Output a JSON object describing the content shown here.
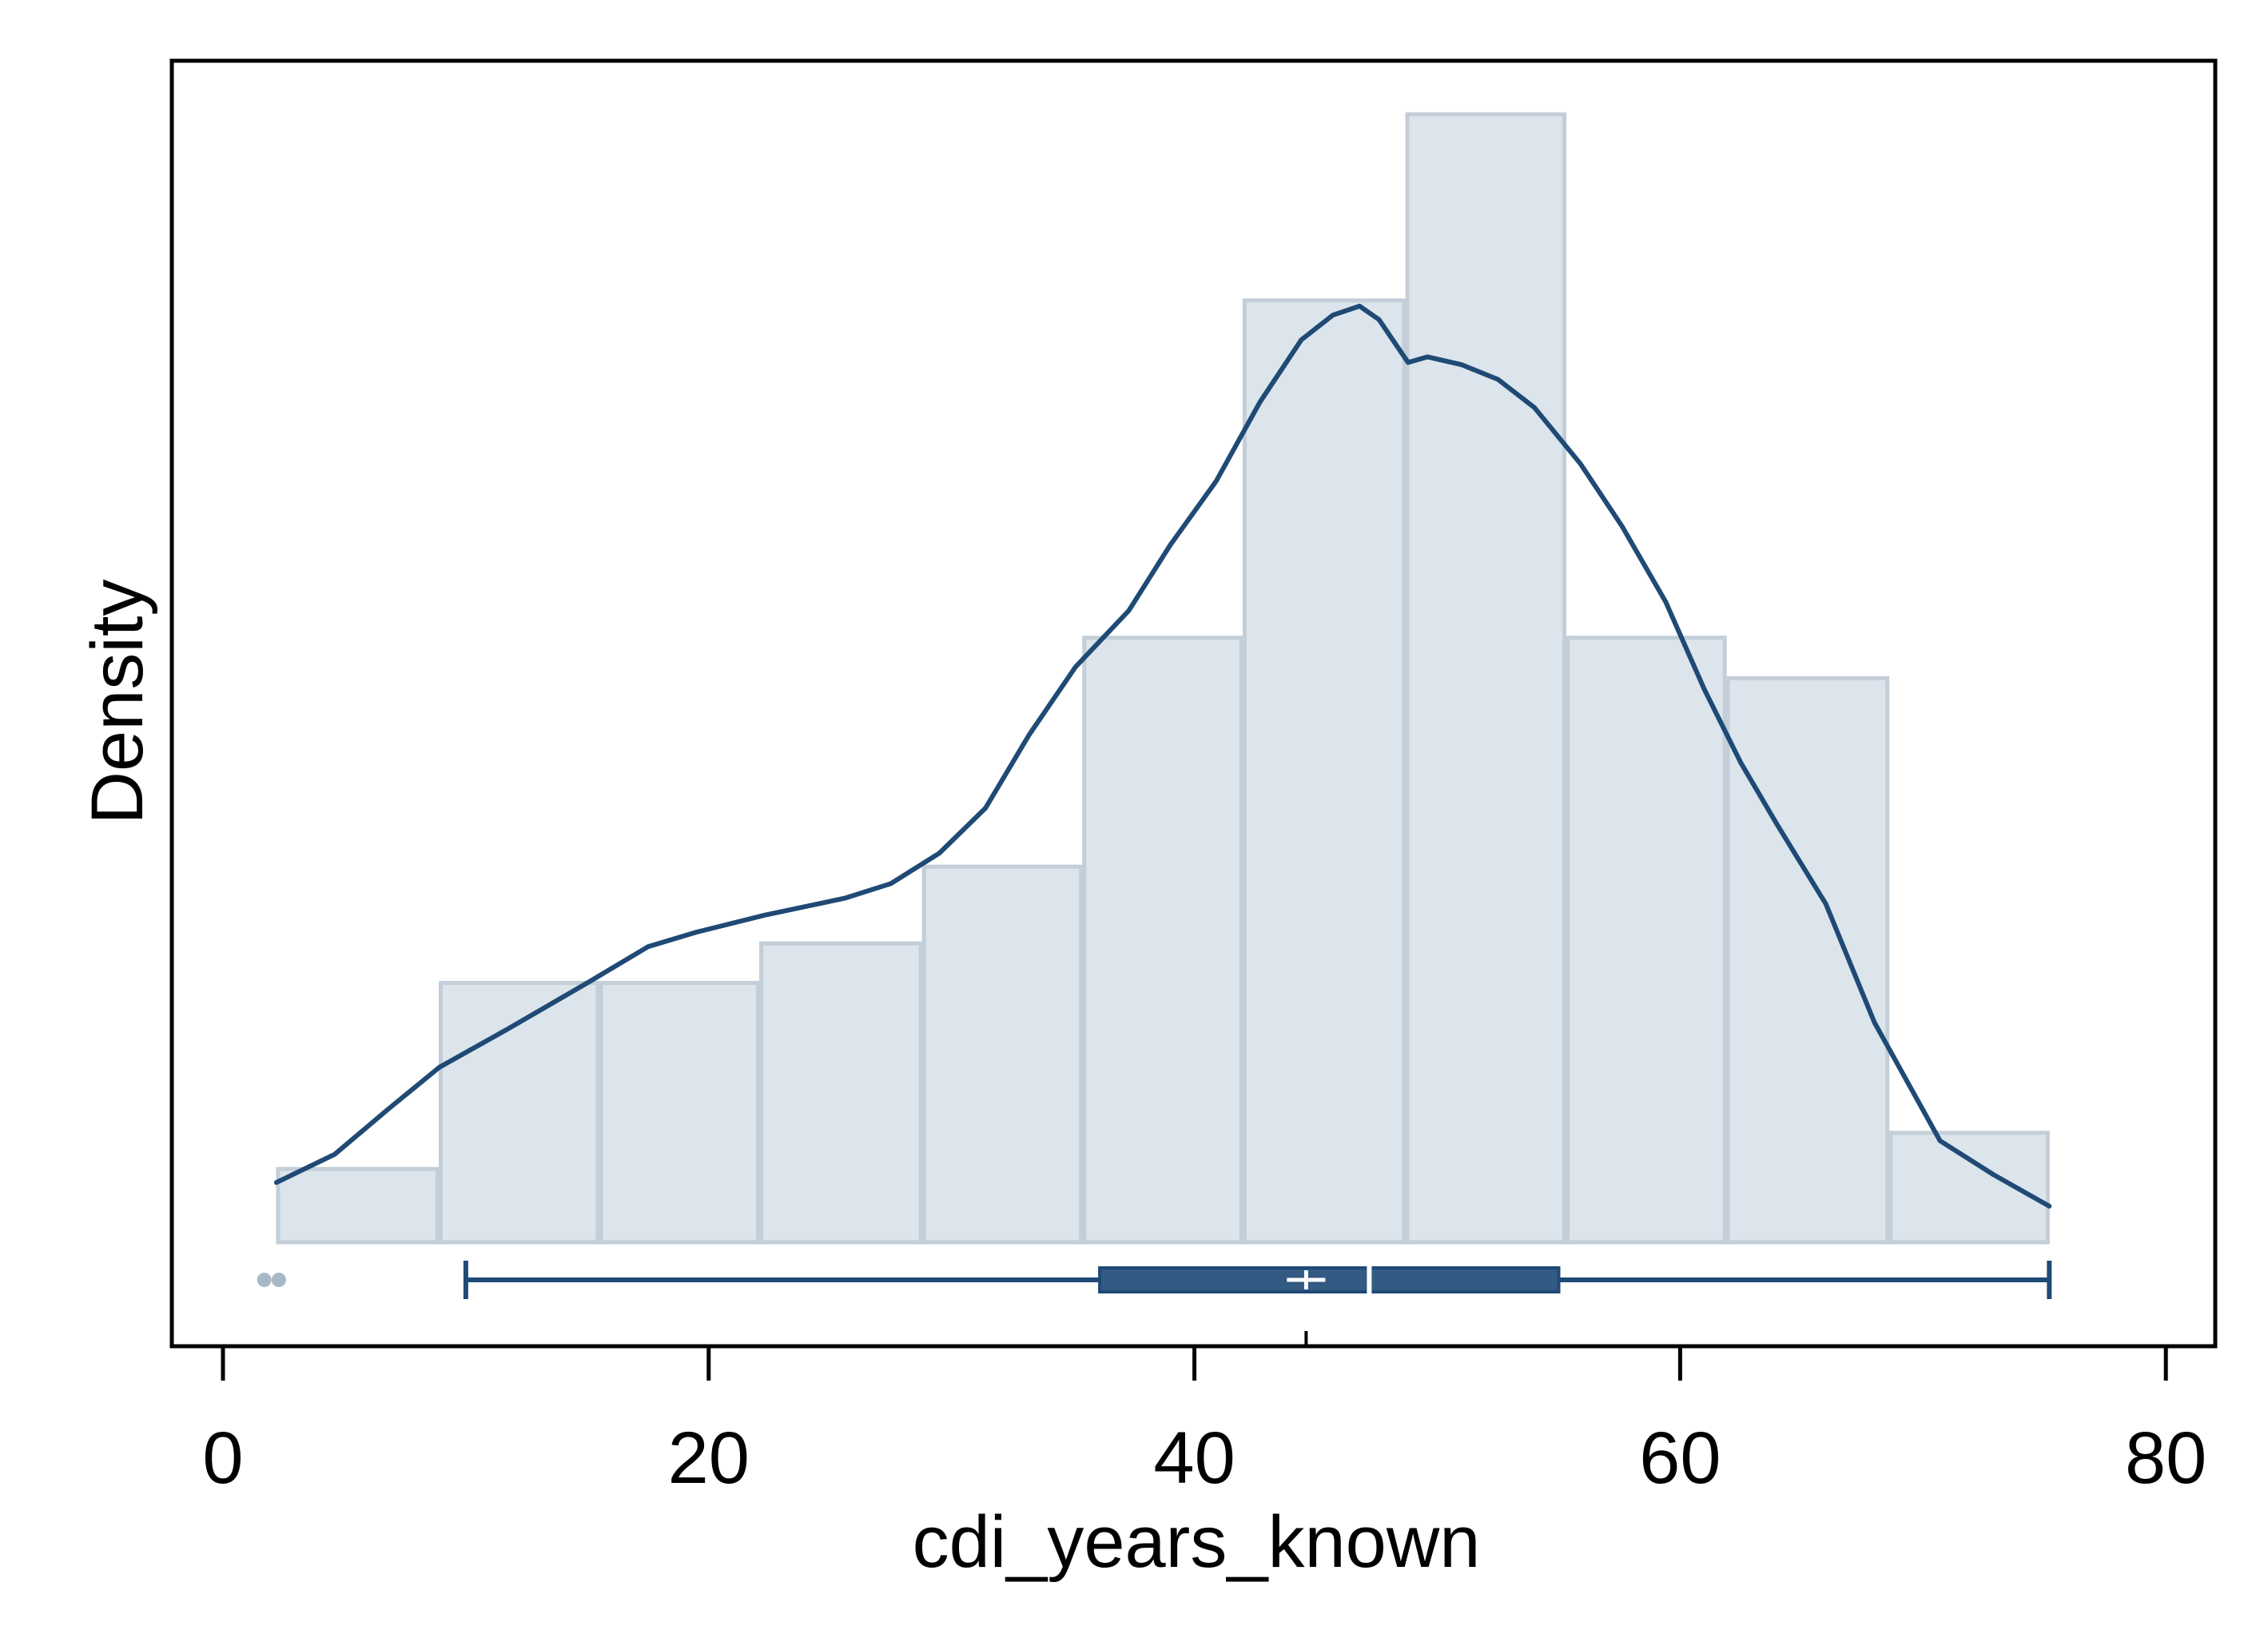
{
  "chart_data": {
    "type": "bar",
    "subtype": "histogram with kernel density and boxplot",
    "xlabel": "cdi_years_known",
    "ylabel": "Density",
    "xlim": [
      -2,
      82
    ],
    "x_ticks": [
      0,
      20,
      40,
      60,
      80
    ],
    "x_tick_labels": [
      "0",
      "20",
      "40",
      "60",
      "80"
    ],
    "y_tick_labels_shown": false,
    "grid": false,
    "legend": "none",
    "colors": {
      "bar_fill": "#dce4ec",
      "bar_edge": "#c3ced8",
      "density_line": "#1f4a75",
      "box": "#325a82",
      "outlier": "#a9b8c6",
      "frame": "#000000"
    },
    "histogram": {
      "bin_edges": [
        2.2,
        8.9,
        15.5,
        22.1,
        28.8,
        35.4,
        42.0,
        48.7,
        55.3,
        61.9,
        68.6,
        75.2
      ],
      "relative_density": [
        0.065,
        0.23,
        0.23,
        0.265,
        0.333,
        0.536,
        0.835,
        1.0,
        0.536,
        0.5,
        0.097
      ]
    },
    "density_curve": {
      "x": [
        2.2,
        4.6,
        6.8,
        8.9,
        11.8,
        15.0,
        17.5,
        19.5,
        22.3,
        25.6,
        27.5,
        29.5,
        31.4,
        33.2,
        35.1,
        37.3,
        39.0,
        40.9,
        42.7,
        44.4,
        45.7,
        46.8,
        47.6,
        48.8,
        49.6,
        51.0,
        52.5,
        54.0,
        55.9,
        57.6,
        59.4,
        61.0,
        62.5,
        64.0,
        66.0,
        68.0,
        70.7,
        72.9,
        75.2
      ],
      "relative_density": [
        0.053,
        0.078,
        0.118,
        0.155,
        0.19,
        0.23,
        0.262,
        0.275,
        0.29,
        0.305,
        0.318,
        0.345,
        0.385,
        0.45,
        0.51,
        0.56,
        0.618,
        0.675,
        0.745,
        0.8,
        0.822,
        0.83,
        0.818,
        0.78,
        0.785,
        0.778,
        0.765,
        0.74,
        0.69,
        0.635,
        0.568,
        0.49,
        0.425,
        0.37,
        0.3,
        0.195,
        0.09,
        0.06,
        0.032
      ]
    },
    "boxplot": {
      "whisker_low": 10.0,
      "q1": 36.1,
      "median": 47.2,
      "mean": 44.6,
      "q3": 55.0,
      "whisker_high": 75.2,
      "outliers": [
        1.7,
        2.3
      ]
    }
  }
}
